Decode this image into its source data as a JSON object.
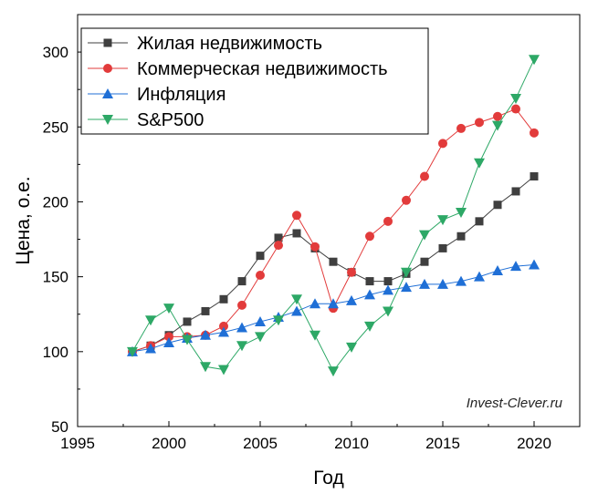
{
  "chart_data": {
    "type": "line",
    "xlabel": "Год",
    "ylabel": "Цена, о.е.",
    "xlim": [
      1995,
      2022.5
    ],
    "ylim": [
      50,
      325
    ],
    "xticks": [
      1995,
      2000,
      2005,
      2010,
      2015,
      2020
    ],
    "yticks": [
      50,
      100,
      150,
      200,
      250,
      300
    ],
    "grid": false,
    "legend_position": "top-left",
    "annotation": "Invest-Clever.ru",
    "x": [
      1998,
      1999,
      2000,
      2001,
      2002,
      2003,
      2004,
      2005,
      2006,
      2007,
      2008,
      2009,
      2010,
      2011,
      2012,
      2013,
      2014,
      2015,
      2016,
      2017,
      2018,
      2019,
      2020
    ],
    "series": [
      {
        "name": "Жилая недвижимость",
        "color": "#3f3f3f",
        "marker": "square",
        "values": [
          100,
          104,
          111,
          120,
          127,
          135,
          147,
          164,
          176,
          179,
          169,
          160,
          153,
          147,
          147,
          152,
          160,
          169,
          177,
          187,
          198,
          207,
          217
        ]
      },
      {
        "name": "Коммерческая недвижимость",
        "color": "#e23b3b",
        "marker": "circle",
        "values": [
          100,
          104,
          110,
          110,
          111,
          117,
          131,
          151,
          171,
          191,
          170,
          129,
          153,
          177,
          187,
          201,
          217,
          239,
          249,
          253,
          257,
          262,
          246
        ]
      },
      {
        "name": "Инфляция",
        "color": "#1f6fd6",
        "marker": "triangle-up",
        "values": [
          100,
          102,
          106,
          109,
          111,
          113,
          116,
          120,
          123,
          127,
          132,
          132,
          134,
          138,
          141,
          143,
          145,
          145,
          147,
          150,
          154,
          157,
          158
        ]
      },
      {
        "name": "S&P500",
        "color": "#2da866",
        "marker": "triangle-down",
        "values": [
          100,
          121,
          129,
          108,
          90,
          88,
          104,
          110,
          121,
          135,
          111,
          87,
          103,
          117,
          127,
          153,
          178,
          188,
          193,
          226,
          251,
          269,
          295
        ]
      }
    ]
  }
}
